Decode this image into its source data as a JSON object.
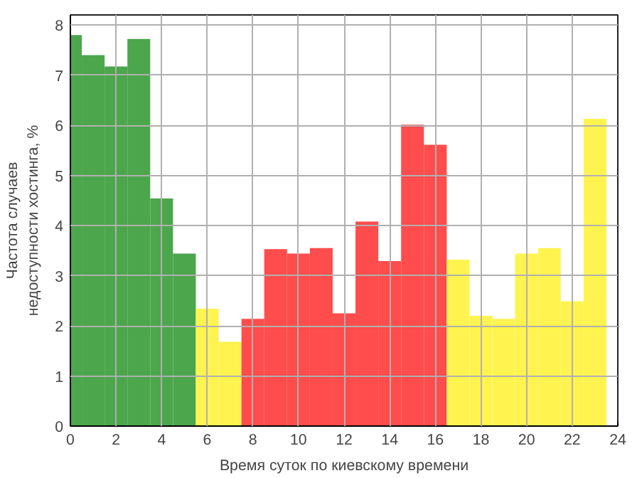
{
  "chart_data": {
    "type": "histogram",
    "xlabel": "Время суток по киевскому времени",
    "ylabel": "Частота случаев\nнедоступности хостинга, %",
    "bins": [
      0,
      0.5,
      1.5,
      2.5,
      3.5,
      4.5,
      5.5,
      6.5,
      7.5,
      8.5,
      9.5,
      10.5,
      11.5,
      12.5,
      13.5,
      14.5,
      15.5,
      16.5,
      17.5,
      18.5,
      19.5,
      20.5,
      21.5,
      22.5,
      23.5
    ],
    "values": [
      7.8,
      7.4,
      7.17,
      7.72,
      4.54,
      3.44,
      2.34,
      1.68,
      2.14,
      3.53,
      3.44,
      3.55,
      2.25,
      4.08,
      3.29,
      6.01,
      5.61,
      3.32,
      2.2,
      2.14,
      3.44,
      3.55,
      2.49,
      6.13
    ],
    "colors": [
      "#4ca64c",
      "#4ca64c",
      "#4ca64c",
      "#4ca64c",
      "#4ca64c",
      "#4ca64c",
      "#fff44f",
      "#fff44f",
      "#ff4c4c",
      "#ff4c4c",
      "#ff4c4c",
      "#ff4c4c",
      "#ff4c4c",
      "#ff4c4c",
      "#ff4c4c",
      "#ff4c4c",
      "#ff4c4c",
      "#fff44f",
      "#fff44f",
      "#fff44f",
      "#fff44f",
      "#fff44f",
      "#fff44f",
      "#fff44f"
    ],
    "xlim": [
      0,
      24
    ],
    "xticks": [
      0,
      2,
      4,
      6,
      8,
      10,
      12,
      14,
      16,
      18,
      20,
      22,
      24
    ],
    "ylim": [
      0,
      8.2
    ],
    "yticks": [
      0,
      1,
      2,
      3,
      4,
      5,
      6,
      7,
      8
    ],
    "grid": true
  }
}
